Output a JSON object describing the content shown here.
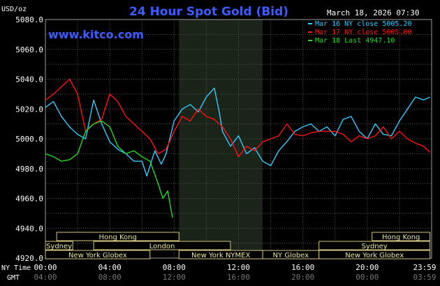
{
  "chart": {
    "title": "24 Hour Spot Gold (Bid)",
    "y_unit": "USD/oz",
    "date_stamp": "March 18, 2026 07:30",
    "site": "www.kitco.com",
    "x_row_label_ny": "NY Time",
    "x_row_label_gmt": "GMT",
    "legend": [
      {
        "label": "Mar 16 NY close 5005.20",
        "color": "#33ccff"
      },
      {
        "label": "Mar 17 NY close 5005.00",
        "color": "#ff1111"
      },
      {
        "label": "Mar 18 Last 4947.10",
        "color": "#22dd22"
      }
    ],
    "sessions": [
      {
        "name": "Hong Kong",
        "row": 0,
        "start": 0.7,
        "end": 8.3
      },
      {
        "name": "Hong Kong",
        "row": 0,
        "start": 20.3,
        "end": 23.9
      },
      {
        "name": "Sydney",
        "row": 1,
        "start": 0.0,
        "end": 1.7
      },
      {
        "name": "Sydney",
        "row": 1,
        "start": 17.0,
        "end": 23.9
      },
      {
        "name": "London",
        "row": 1,
        "start": 3.0,
        "end": 11.5
      },
      {
        "name": "New York Globex",
        "row": 2,
        "start": 0.0,
        "end": 6.5
      },
      {
        "name": "New York NYMEX",
        "row": 2,
        "start": 8.3,
        "end": 13.5
      },
      {
        "name": "NY Globex",
        "row": 2,
        "start": 13.5,
        "end": 17.0
      },
      {
        "name": "New York Globex",
        "row": 2,
        "start": 17.0,
        "end": 23.9
      }
    ]
  },
  "chart_data": {
    "type": "line",
    "title": "24 Hour Spot Gold (Bid)",
    "ylabel": "USD/oz",
    "ylim": [
      4920,
      5080
    ],
    "xlim": [
      0,
      24
    ],
    "yticks": [
      "4920.0",
      "4940.0",
      "4960.0",
      "4980.0",
      "5000.0",
      "5020.0",
      "5040.0",
      "5060.0",
      "5080.0"
    ],
    "x_ticks_ny": [
      "00:00",
      "04:00",
      "08:00",
      "12:00",
      "16:00",
      "20:00",
      "23:59"
    ],
    "x_ticks_gmt": [
      "04:00",
      "08:00",
      "12:00",
      "16:00",
      "20:00",
      "00:00",
      "03:59"
    ],
    "highlight_range_hours": [
      8.3,
      13.5
    ],
    "grid": true,
    "series": [
      {
        "name": "Mar 16 NY close 5005.20",
        "x": [
          0,
          0.5,
          1,
          1.5,
          2,
          2.5,
          3,
          3.5,
          4,
          4.5,
          5,
          5.5,
          6,
          6.3,
          6.8,
          7.2,
          7.5,
          8,
          8.5,
          9,
          9.5,
          10,
          10.5,
          10.8,
          11,
          11.5,
          12,
          12.5,
          13,
          13.5,
          14,
          14.5,
          15,
          15.5,
          16,
          16.5,
          17,
          17.5,
          18,
          18.5,
          19,
          19.5,
          20,
          20.5,
          21,
          21.5,
          22,
          22.5,
          23,
          23.5,
          23.9
        ],
        "y": [
          5021,
          5025,
          5015,
          5008,
          5003,
          5000,
          5026,
          5010,
          4998,
          4993,
          4990,
          4985,
          4985,
          4975,
          4992,
          4983,
          4990,
          5012,
          5020,
          5023,
          5018,
          5028,
          5034,
          5018,
          5005,
          4995,
          5002,
          4990,
          4994,
          4985,
          4982,
          4992,
          4998,
          5005,
          5008,
          5010,
          5005,
          5008,
          5002,
          5013,
          5015,
          5005,
          5000,
          5010,
          5003,
          5002,
          5012,
          5020,
          5028,
          5026,
          5028
        ]
      },
      {
        "name": "Mar 17 NY close 5005.00",
        "x": [
          0,
          0.5,
          1,
          1.5,
          2,
          2.5,
          3,
          3.5,
          4,
          4.5,
          5,
          5.5,
          6,
          6.5,
          7,
          7.5,
          8,
          8.5,
          9,
          9.5,
          10,
          10.5,
          11,
          11.5,
          12,
          12.5,
          13,
          13.5,
          14,
          14.5,
          15,
          15.5,
          16,
          16.5,
          17,
          17.5,
          18,
          18.5,
          19,
          19.5,
          20,
          20.5,
          21,
          21.5,
          22,
          22.5,
          23,
          23.5,
          23.9
        ],
        "y": [
          5026,
          5030,
          5035,
          5040,
          5030,
          5005,
          5010,
          5013,
          5030,
          5025,
          5015,
          5010,
          5005,
          5000,
          4990,
          4993,
          5005,
          5015,
          5012,
          5020,
          5015,
          5013,
          5008,
          5000,
          4988,
          4995,
          4992,
          4998,
          5000,
          5002,
          5010,
          5003,
          5002,
          5004,
          5005,
          5005,
          5005,
          5003,
          4998,
          5002,
          5000,
          5002,
          5008,
          5000,
          5005,
          5000,
          4997,
          4995,
          4991
        ]
      },
      {
        "name": "Mar 18 Last 4947.10",
        "x": [
          0,
          0.5,
          1,
          1.5,
          2,
          2.5,
          3,
          3.5,
          4,
          4.5,
          5,
          5.5,
          6,
          6.5,
          7,
          7.3,
          7.6,
          7.9
        ],
        "y": [
          4990,
          4988,
          4985,
          4986,
          4990,
          5005,
          5010,
          5012,
          5008,
          4995,
          4990,
          4992,
          4988,
          4985,
          4970,
          4960,
          4965,
          4947.1
        ]
      }
    ]
  }
}
